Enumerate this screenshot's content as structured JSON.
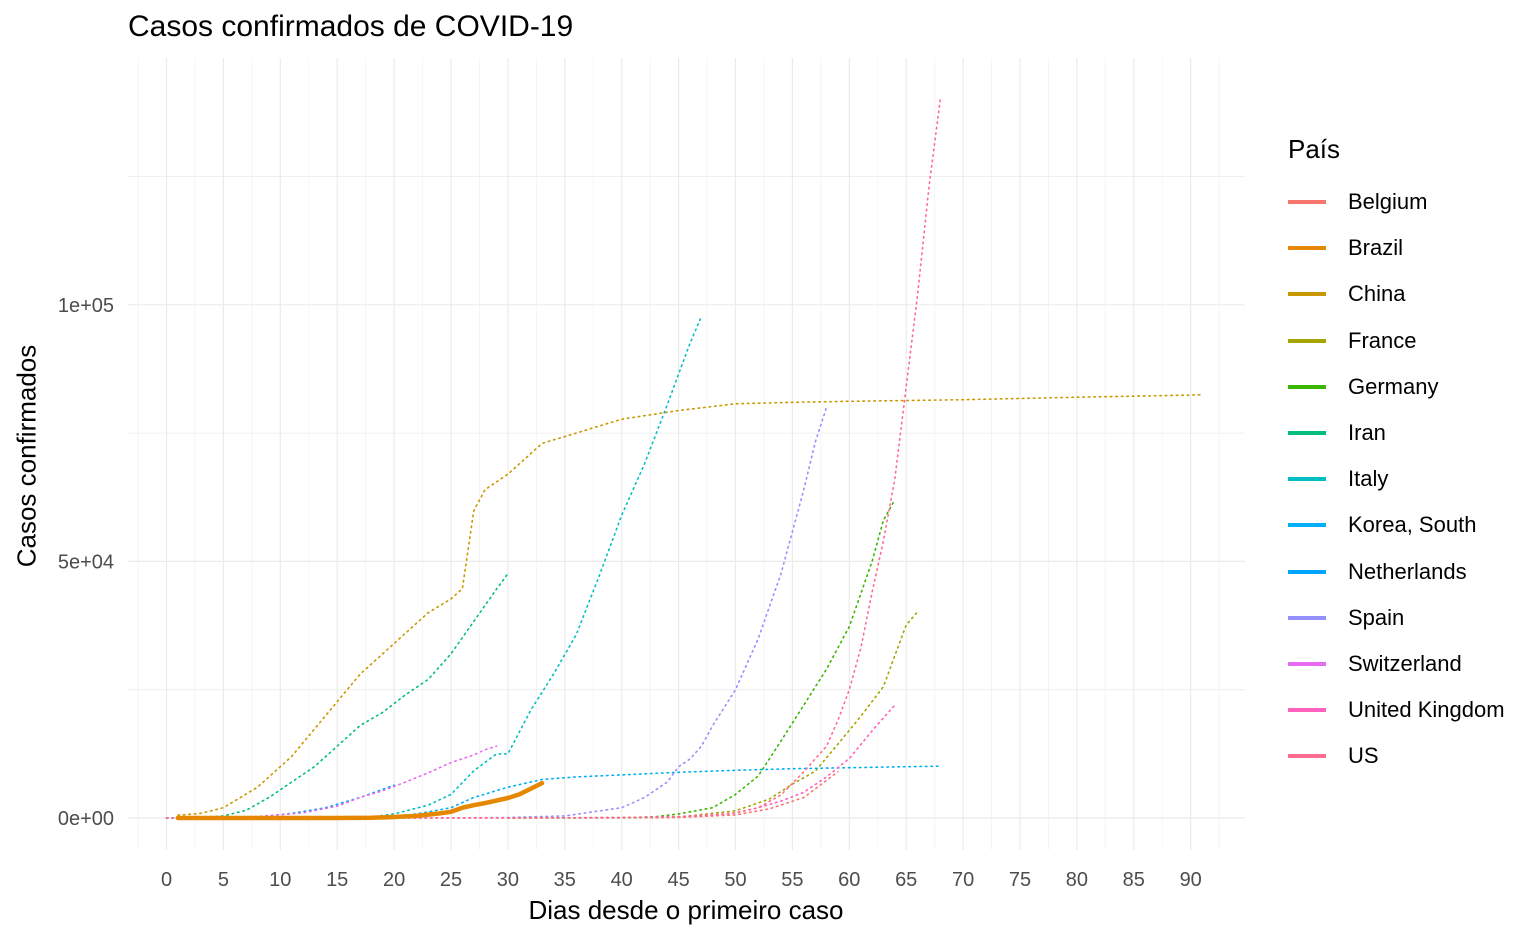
{
  "chart_data": {
    "type": "line",
    "title": "Casos confirmados de COVID-19",
    "xlabel": "Dias desde o primeiro caso",
    "ylabel": "Casos confirmados",
    "legend_title": "País",
    "legend_position": "right",
    "grid": true,
    "xlim": [
      -2.5,
      93
    ],
    "ylim": [
      -6000,
      150000
    ],
    "x_ticks": [
      0,
      5,
      10,
      15,
      20,
      25,
      30,
      35,
      40,
      45,
      50,
      55,
      60,
      65,
      70,
      75,
      80,
      85,
      90
    ],
    "x_tick_labels": [
      "0",
      "5",
      "10",
      "15",
      "20",
      "25",
      "30",
      "35",
      "40",
      "45",
      "50",
      "55",
      "60",
      "65",
      "70",
      "75",
      "80",
      "85",
      "90"
    ],
    "y_ticks": [
      0,
      50000,
      100000
    ],
    "y_tick_labels": [
      "0e+00",
      "5e+04",
      "1e+05"
    ],
    "highlight_series": "Brazil",
    "series": [
      {
        "name": "Belgium",
        "color": "#F8766D",
        "points": [
          [
            30,
            0
          ],
          [
            40,
            10
          ],
          [
            45,
            100
          ],
          [
            50,
            600
          ],
          [
            53,
            1800
          ],
          [
            56,
            4000
          ],
          [
            59,
            9000
          ]
        ]
      },
      {
        "name": "Brazil",
        "color": "#E58700",
        "points": [
          [
            1,
            0
          ],
          [
            5,
            0
          ],
          [
            10,
            0
          ],
          [
            15,
            0
          ],
          [
            18,
            30
          ],
          [
            20,
            200
          ],
          [
            22,
            400
          ],
          [
            24,
            900
          ],
          [
            25,
            1200
          ],
          [
            26,
            2000
          ],
          [
            27,
            2500
          ],
          [
            28,
            2900
          ],
          [
            29,
            3400
          ],
          [
            30,
            3900
          ],
          [
            31,
            4600
          ],
          [
            32,
            5700
          ],
          [
            33,
            6800
          ]
        ]
      },
      {
        "name": "China",
        "color": "#C99800",
        "points": [
          [
            1,
            548
          ],
          [
            3,
            900
          ],
          [
            5,
            2000
          ],
          [
            8,
            6000
          ],
          [
            11,
            12000
          ],
          [
            14,
            20000
          ],
          [
            17,
            28000
          ],
          [
            20,
            34000
          ],
          [
            23,
            40000
          ],
          [
            25,
            42700
          ],
          [
            26,
            44700
          ],
          [
            27,
            59900
          ],
          [
            28,
            64000
          ],
          [
            30,
            67000
          ],
          [
            33,
            73000
          ],
          [
            36,
            75000
          ],
          [
            40,
            77700
          ],
          [
            45,
            79400
          ],
          [
            50,
            80700
          ],
          [
            55,
            81000
          ],
          [
            60,
            81200
          ],
          [
            70,
            81500
          ],
          [
            80,
            82000
          ],
          [
            90,
            82400
          ],
          [
            91,
            82500
          ]
        ]
      },
      {
        "name": "France",
        "color": "#A3A500",
        "points": [
          [
            30,
            12
          ],
          [
            40,
            38
          ],
          [
            45,
            200
          ],
          [
            50,
            1400
          ],
          [
            53,
            3700
          ],
          [
            55,
            6600
          ],
          [
            57,
            9100
          ],
          [
            59,
            14400
          ],
          [
            61,
            19800
          ],
          [
            63,
            25600
          ],
          [
            65,
            37600
          ],
          [
            66,
            40200
          ]
        ]
      },
      {
        "name": "Germany",
        "color": "#39B600",
        "points": [
          [
            30,
            16
          ],
          [
            40,
            60
          ],
          [
            43,
            260
          ],
          [
            45,
            800
          ],
          [
            48,
            2000
          ],
          [
            50,
            4600
          ],
          [
            52,
            8200
          ],
          [
            54,
            15000
          ],
          [
            56,
            22000
          ],
          [
            58,
            29000
          ],
          [
            60,
            37300
          ],
          [
            62,
            50000
          ],
          [
            63,
            58000
          ],
          [
            64,
            62000
          ]
        ]
      },
      {
        "name": "Iran",
        "color": "#00BF7D",
        "points": [
          [
            0,
            0
          ],
          [
            3,
            50
          ],
          [
            5,
            400
          ],
          [
            7,
            1500
          ],
          [
            9,
            4000
          ],
          [
            11,
            7000
          ],
          [
            13,
            10000
          ],
          [
            15,
            14000
          ],
          [
            17,
            18000
          ],
          [
            19,
            20600
          ],
          [
            21,
            24000
          ],
          [
            23,
            27000
          ],
          [
            25,
            32000
          ],
          [
            27,
            38300
          ],
          [
            29,
            44600
          ],
          [
            30,
            47600
          ]
        ]
      },
      {
        "name": "Italy",
        "color": "#00BFC4",
        "points": [
          [
            0,
            0
          ],
          [
            12,
            3
          ],
          [
            15,
            20
          ],
          [
            18,
            200
          ],
          [
            20,
            800
          ],
          [
            23,
            2500
          ],
          [
            25,
            4600
          ],
          [
            27,
            9200
          ],
          [
            29,
            12500
          ],
          [
            30,
            12500
          ],
          [
            32,
            21000
          ],
          [
            34,
            28000
          ],
          [
            36,
            35700
          ],
          [
            38,
            47000
          ],
          [
            40,
            59000
          ],
          [
            42,
            69000
          ],
          [
            44,
            80500
          ],
          [
            45,
            86500
          ],
          [
            46,
            92500
          ],
          [
            47,
            97700
          ]
        ]
      },
      {
        "name": "Korea, South",
        "color": "#00B0F6",
        "points": [
          [
            0,
            1
          ],
          [
            10,
            28
          ],
          [
            15,
            50
          ],
          [
            20,
            300
          ],
          [
            22,
            800
          ],
          [
            25,
            2000
          ],
          [
            27,
            4000
          ],
          [
            30,
            6000
          ],
          [
            33,
            7500
          ],
          [
            36,
            8000
          ],
          [
            40,
            8400
          ],
          [
            45,
            8900
          ],
          [
            50,
            9300
          ],
          [
            55,
            9600
          ],
          [
            60,
            9800
          ],
          [
            65,
            10000
          ],
          [
            68,
            10100
          ]
        ]
      },
      {
        "name": "Netherlands",
        "color": "#00A5FF",
        "points": [
          [
            1,
            0
          ],
          [
            5,
            30
          ],
          [
            8,
            200
          ],
          [
            11,
            900
          ],
          [
            14,
            2000
          ],
          [
            17,
            4000
          ],
          [
            19,
            5600
          ],
          [
            20,
            6400
          ]
        ]
      },
      {
        "name": "Spain",
        "color": "#9590FF",
        "points": [
          [
            0,
            0
          ],
          [
            15,
            0
          ],
          [
            20,
            2
          ],
          [
            25,
            20
          ],
          [
            30,
            100
          ],
          [
            35,
            400
          ],
          [
            40,
            2000
          ],
          [
            42,
            4000
          ],
          [
            44,
            7000
          ],
          [
            45,
            10000
          ],
          [
            46,
            11500
          ],
          [
            47,
            14000
          ],
          [
            48,
            18000
          ],
          [
            50,
            25000
          ],
          [
            52,
            35000
          ],
          [
            54,
            47600
          ],
          [
            56,
            64000
          ],
          [
            57,
            73200
          ],
          [
            58,
            80000
          ]
        ]
      },
      {
        "name": "Switzerland",
        "color": "#E76BF3",
        "points": [
          [
            1,
            0
          ],
          [
            5,
            100
          ],
          [
            8,
            300
          ],
          [
            12,
            1000
          ],
          [
            15,
            2300
          ],
          [
            17,
            4000
          ],
          [
            19,
            5300
          ],
          [
            21,
            7000
          ],
          [
            23,
            8800
          ],
          [
            25,
            10800
          ],
          [
            27,
            12300
          ],
          [
            28,
            13300
          ],
          [
            29,
            14000
          ]
        ]
      },
      {
        "name": "United Kingdom",
        "color": "#FF62BC",
        "points": [
          [
            0,
            0
          ],
          [
            20,
            5
          ],
          [
            25,
            12
          ],
          [
            30,
            20
          ],
          [
            35,
            40
          ],
          [
            40,
            100
          ],
          [
            45,
            300
          ],
          [
            48,
            600
          ],
          [
            50,
            1000
          ],
          [
            52,
            2000
          ],
          [
            54,
            3300
          ],
          [
            56,
            5000
          ],
          [
            58,
            8000
          ],
          [
            60,
            11600
          ],
          [
            62,
            17000
          ],
          [
            64,
            22000
          ]
        ]
      },
      {
        "name": "US",
        "color": "#FF6C91",
        "points": [
          [
            0,
            1
          ],
          [
            20,
            15
          ],
          [
            30,
            20
          ],
          [
            35,
            60
          ],
          [
            40,
            100
          ],
          [
            45,
            200
          ],
          [
            48,
            500
          ],
          [
            50,
            1000
          ],
          [
            52,
            2000
          ],
          [
            54,
            4500
          ],
          [
            56,
            9000
          ],
          [
            58,
            14000
          ],
          [
            59,
            19000
          ],
          [
            60,
            25000
          ],
          [
            61,
            33000
          ],
          [
            62,
            44000
          ],
          [
            63,
            54000
          ],
          [
            64,
            66000
          ],
          [
            65,
            84000
          ],
          [
            66,
            102000
          ],
          [
            67,
            123000
          ],
          [
            68,
            140000
          ]
        ]
      }
    ]
  }
}
